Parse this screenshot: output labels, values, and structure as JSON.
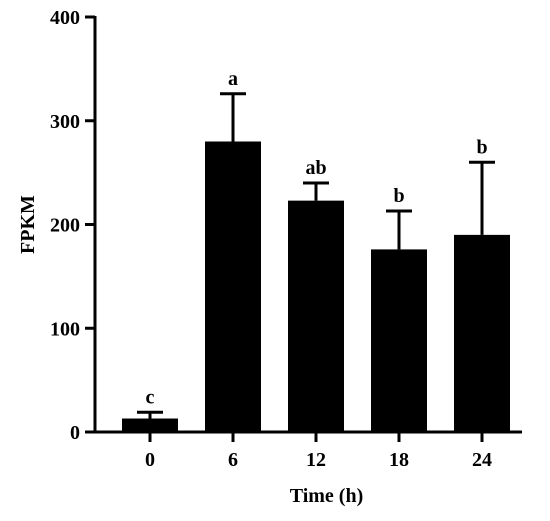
{
  "chart_data": {
    "type": "bar",
    "title": "",
    "xlabel": "Time (h)",
    "ylabel": "FPKM",
    "categories": [
      "0",
      "6",
      "12",
      "18",
      "24"
    ],
    "values": [
      13,
      280,
      223,
      176,
      190
    ],
    "error_upper": [
      19,
      326,
      240,
      213,
      260
    ],
    "significance_labels": [
      "c",
      "a",
      "ab",
      "b",
      "b"
    ],
    "ylim": [
      0,
      400
    ],
    "yticks": [
      0,
      100,
      200,
      300,
      400
    ],
    "grid": false,
    "legend": "none",
    "colors": {
      "bar": "#000000",
      "axis": "#000000",
      "background": "#ffffff"
    }
  }
}
